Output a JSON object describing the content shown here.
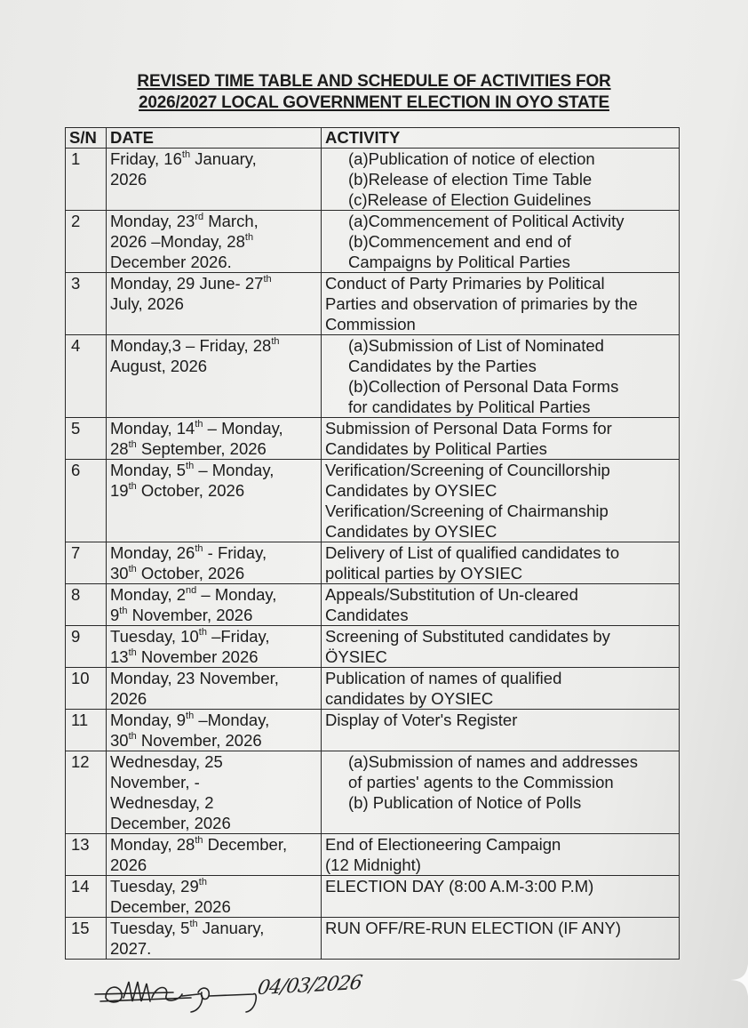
{
  "title": {
    "line1": "REVISED TIME TABLE AND SCHEDULE OF ACTIVITIES FOR",
    "line2": "2026/2027 LOCAL GOVERNMENT ELECTION IN OYO STATE"
  },
  "table": {
    "headers": [
      "S/N",
      "DATE",
      "ACTIVITY"
    ],
    "rows": [
      {
        "sn": "1",
        "list": true,
        "date": [
          [
            [
              "Friday, 16"
            ],
            [
              "th",
              "s"
            ],
            [
              " January,"
            ]
          ],
          [
            [
              "2026"
            ]
          ]
        ],
        "activity": [
          "(a)Publication of notice of election",
          "(b)Release of election Time Table",
          "(c)Release of Election Guidelines"
        ]
      },
      {
        "sn": "2",
        "list": true,
        "date": [
          [
            [
              "Monday, 23"
            ],
            [
              "rd",
              "s"
            ],
            [
              " March,"
            ]
          ],
          [
            [
              "2026 –Monday, 28"
            ],
            [
              "th",
              "s"
            ]
          ],
          [
            [
              "December 2026."
            ]
          ]
        ],
        "activity": [
          "(a)Commencement of Political Activity",
          "(b)Commencement and end of",
          "Campaigns by Political Parties"
        ]
      },
      {
        "sn": "3",
        "list": false,
        "date": [
          [
            [
              "Monday, 29 June- 27"
            ],
            [
              "th",
              "s"
            ]
          ],
          [
            [
              "July, 2026"
            ]
          ]
        ],
        "activity": [
          "Conduct of Party Primaries by Political",
          "Parties and observation of primaries by the",
          "Commission"
        ]
      },
      {
        "sn": "4",
        "list": true,
        "date": [
          [
            [
              "Monday,3 – Friday, 28"
            ],
            [
              "th",
              "s"
            ]
          ],
          [
            [
              "August, 2026"
            ]
          ]
        ],
        "activity": [
          "(a)Submission of List of Nominated",
          "Candidates by the Parties",
          "(b)Collection of Personal Data Forms",
          "for candidates by Political Parties"
        ]
      },
      {
        "sn": "5",
        "list": false,
        "date": [
          [
            [
              "Monday, 14"
            ],
            [
              "th",
              "s"
            ],
            [
              " – Monday,"
            ]
          ],
          [
            [
              "28"
            ],
            [
              "th",
              "s"
            ],
            [
              " September, 2026"
            ]
          ]
        ],
        "activity": [
          "Submission of Personal Data Forms for",
          "Candidates by Political Parties"
        ]
      },
      {
        "sn": "6",
        "list": false,
        "date": [
          [
            [
              "Monday, 5"
            ],
            [
              "th",
              "s"
            ],
            [
              " – Monday,"
            ]
          ],
          [
            [
              "19"
            ],
            [
              "th",
              "s"
            ],
            [
              " October, 2026"
            ]
          ]
        ],
        "activity": [
          "Verification/Screening of Councillorship",
          "Candidates by OYSIEC",
          "Verification/Screening of Chairmanship",
          "Candidates by OYSIEC"
        ]
      },
      {
        "sn": "7",
        "list": false,
        "date": [
          [
            [
              "Monday, 26"
            ],
            [
              "th",
              "s"
            ],
            [
              " - Friday,"
            ]
          ],
          [
            [
              "30"
            ],
            [
              "th",
              "s"
            ],
            [
              " October, 2026"
            ]
          ]
        ],
        "activity": [
          "Delivery of List of qualified candidates to",
          "political parties by OYSIEC"
        ]
      },
      {
        "sn": "8",
        "list": false,
        "date": [
          [
            [
              "Monday, 2"
            ],
            [
              "nd",
              "s"
            ],
            [
              "  – Monday,"
            ]
          ],
          [
            [
              "9"
            ],
            [
              "th",
              "s"
            ],
            [
              " November, 2026"
            ]
          ]
        ],
        "activity": [
          "Appeals/Substitution of Un-cleared",
          "Candidates"
        ]
      },
      {
        "sn": "9",
        "list": false,
        "date": [
          [
            [
              "Tuesday, 10"
            ],
            [
              "th",
              "s"
            ],
            [
              "  –Friday,"
            ]
          ],
          [
            [
              "13"
            ],
            [
              "th",
              "s"
            ],
            [
              " November 2026"
            ]
          ]
        ],
        "activity": [
          "Screening of Substituted candidates by",
          "ÖYSIEC"
        ]
      },
      {
        "sn": "10",
        "list": false,
        "date": [
          [
            [
              "Monday, 23 November,"
            ]
          ],
          [
            [
              "2026"
            ]
          ]
        ],
        "activity": [
          "Publication of names of qualified",
          "candidates by OYSIEC"
        ]
      },
      {
        "sn": "11",
        "list": false,
        "date": [
          [
            [
              "Monday, 9"
            ],
            [
              "th",
              "s"
            ],
            [
              " –Monday,"
            ]
          ],
          [
            [
              "30"
            ],
            [
              "th",
              "s"
            ],
            [
              " November, 2026"
            ]
          ]
        ],
        "activity": [
          "Display of Voter's Register"
        ]
      },
      {
        "sn": "12",
        "list": true,
        "date": [
          [
            [
              "Wednesday, 25"
            ]
          ],
          [
            [
              "November, -"
            ]
          ],
          [
            [
              "Wednesday, 2"
            ]
          ],
          [
            [
              "December, 2026"
            ]
          ]
        ],
        "activity": [
          "(a)Submission of names and addresses",
          "of parties' agents to the Commission",
          "(b) Publication of Notice of Polls"
        ]
      },
      {
        "sn": "13",
        "list": false,
        "date": [
          [
            [
              "Monday, 28"
            ],
            [
              "th",
              "s"
            ],
            [
              " December,"
            ]
          ],
          [
            [
              "2026"
            ]
          ]
        ],
        "activity": [
          "End of Electioneering Campaign",
          "(12 Midnight)"
        ]
      },
      {
        "sn": "14",
        "list": false,
        "date": [
          [
            [
              "Tuesday, 29"
            ],
            [
              "th",
              "s"
            ]
          ],
          [
            [
              "December, 2026"
            ]
          ]
        ],
        "activity": [
          "ELECTION DAY (8:00 A.M-3:00 P.M)"
        ]
      },
      {
        "sn": "15",
        "list": false,
        "date": [
          [
            [
              "Tuesday, 5"
            ],
            [
              "th",
              "s"
            ],
            [
              " January,"
            ]
          ],
          [
            [
              "2027."
            ]
          ]
        ],
        "activity": [
          "RUN OFF/RE-RUN ELECTION (IF ANY)"
        ]
      }
    ]
  },
  "signature": {
    "date_text": "04/03/2026"
  }
}
